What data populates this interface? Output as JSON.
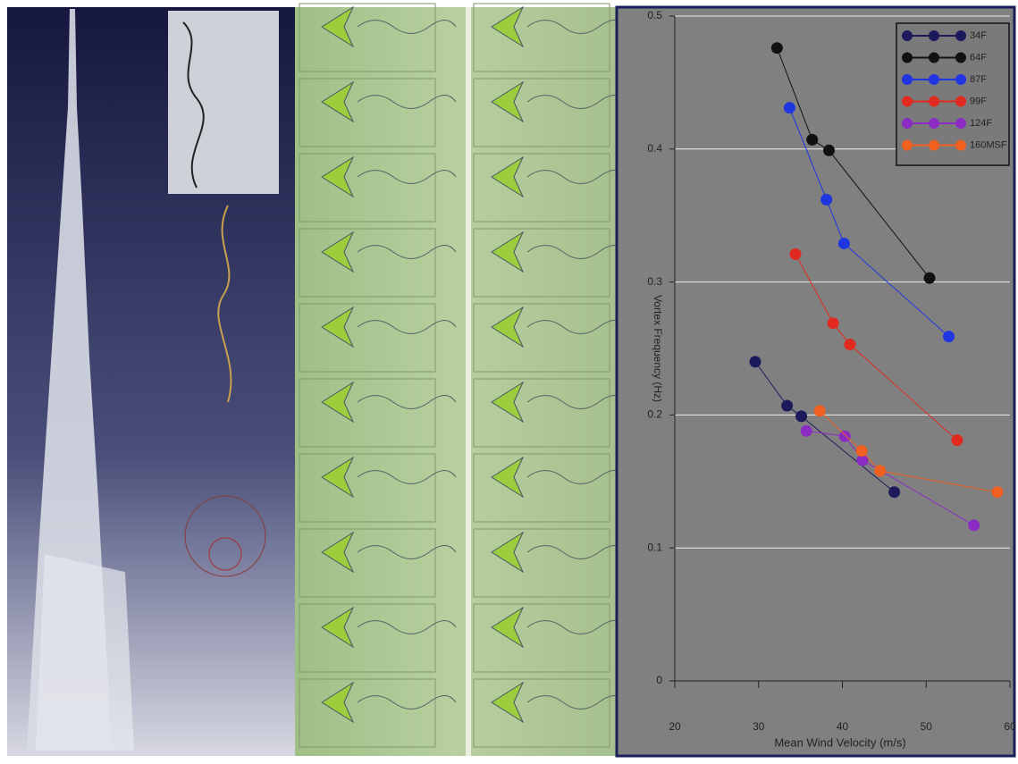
{
  "chart_data": {
    "type": "line",
    "x_label": "Mean Wind Velocity (m/s)",
    "y_label": "Vortex Frequency (Hz)",
    "xlim": [
      20,
      60
    ],
    "xticks": [
      20,
      30,
      40,
      50,
      60
    ],
    "ylim": [
      0,
      0.5
    ],
    "yticks": [
      0,
      0.1,
      0.2,
      0.3,
      0.4,
      0.5
    ],
    "grid": true,
    "legend": "upper right",
    "series": [
      {
        "name": "34F",
        "color": "#1c1a5a",
        "x": [
          29.6,
          33.4,
          35.1,
          46.2
        ],
        "values": [
          0.24,
          0.207,
          0.199,
          0.142
        ]
      },
      {
        "name": "64F",
        "color": "#111111",
        "x": [
          32.2,
          36.4,
          38.4,
          50.4
        ],
        "values": [
          0.476,
          0.407,
          0.399,
          0.303
        ]
      },
      {
        "name": "87F",
        "color": "#1f35e0",
        "x": [
          33.7,
          38.1,
          40.2,
          52.7
        ],
        "values": [
          0.431,
          0.362,
          0.329,
          0.259
        ]
      },
      {
        "name": "99F",
        "color": "#e02a1f",
        "x": [
          34.4,
          38.9,
          40.9,
          53.7
        ],
        "values": [
          0.321,
          0.269,
          0.253,
          0.181
        ]
      },
      {
        "name": "124F",
        "color": "#8a2bc4",
        "x": [
          35.7,
          40.3,
          42.4,
          55.7
        ],
        "values": [
          0.188,
          0.184,
          0.166,
          0.117
        ]
      },
      {
        "name": "160MSF",
        "color": "#f06020",
        "x": [
          37.3,
          42.3,
          44.5,
          58.5
        ],
        "values": [
          0.203,
          0.173,
          0.158,
          0.142
        ]
      }
    ]
  }
}
